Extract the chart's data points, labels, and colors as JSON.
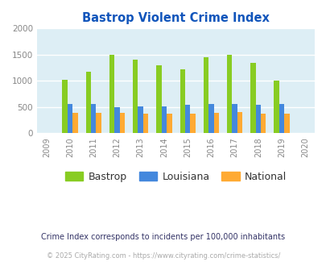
{
  "title": "Bastrop Violent Crime Index",
  "years": [
    2009,
    2010,
    2011,
    2012,
    2013,
    2014,
    2015,
    2016,
    2017,
    2018,
    2019,
    2020
  ],
  "bastrop": [
    null,
    1020,
    1175,
    1500,
    1400,
    1300,
    1225,
    1450,
    1500,
    1340,
    1005,
    null
  ],
  "louisiana": [
    null,
    550,
    550,
    500,
    510,
    515,
    545,
    560,
    555,
    545,
    555,
    null
  ],
  "national": [
    null,
    390,
    380,
    385,
    370,
    365,
    375,
    390,
    395,
    375,
    365,
    null
  ],
  "bar_color_bastrop": "#88cc22",
  "bar_color_louisiana": "#4488dd",
  "bar_color_national": "#ffaa33",
  "bg_color": "#ddeef5",
  "title_color": "#1155bb",
  "ylim": [
    0,
    2000
  ],
  "yticks": [
    0,
    500,
    1000,
    1500,
    2000
  ],
  "footnote1": "Crime Index corresponds to incidents per 100,000 inhabitants",
  "footnote2": "© 2025 CityRating.com - https://www.cityrating.com/crime-statistics/",
  "legend_labels": [
    "Bastrop",
    "Louisiana",
    "National"
  ],
  "legend_label_colors": [
    "#333333",
    "#333333",
    "#333333"
  ],
  "bar_width": 0.22
}
